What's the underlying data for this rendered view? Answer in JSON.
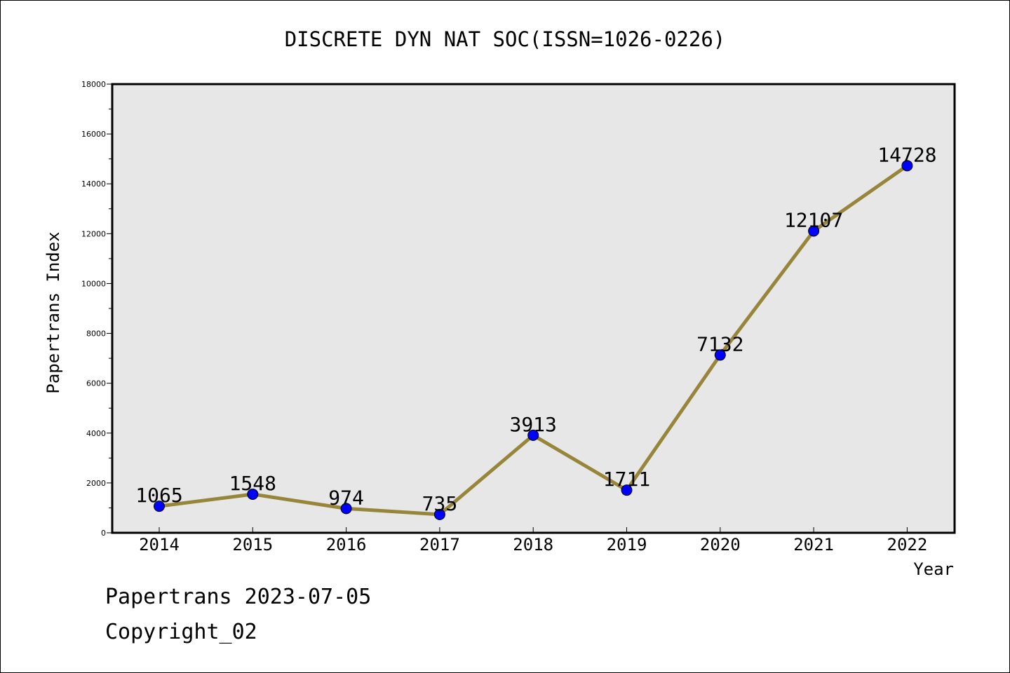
{
  "chart_data": {
    "type": "line",
    "title": "DISCRETE DYN NAT SOC(ISSN=1026-0226)",
    "xlabel": "Year",
    "ylabel": "Papertrans Index",
    "x": [
      "2014",
      "2015",
      "2016",
      "2017",
      "2018",
      "2019",
      "2020",
      "2021",
      "2022"
    ],
    "series": [
      {
        "values": [
          1065,
          1548,
          974,
          735,
          3913,
          1711,
          7132,
          12107,
          14728
        ],
        "line_color": "#978639",
        "marker_color": "#0000ff"
      }
    ],
    "data_labels": [
      "1065",
      "1548",
      "974",
      "735",
      "3913",
      "1711",
      "7132",
      "12107",
      "14728"
    ],
    "ylim": [
      0,
      18000
    ],
    "yticks": [
      0,
      2000,
      4000,
      6000,
      8000,
      10000,
      12000,
      14000,
      16000,
      18000
    ],
    "ytick_labels": [
      "0",
      "2000",
      "4000",
      "6000",
      "8000",
      "10000",
      "12000",
      "14000",
      "16000",
      "18000"
    ],
    "grid": false,
    "plot_background": "#e7e7e7"
  },
  "footer": {
    "date_text": "Papertrans 2023-07-05",
    "copyright_text": "Copyright_02"
  }
}
